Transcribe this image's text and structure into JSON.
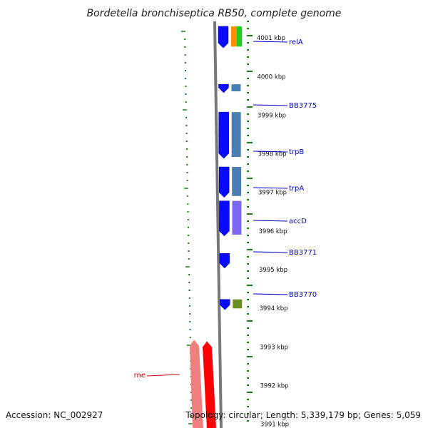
{
  "title": "Bordetella bronchiseptica RB50, complete genome",
  "footer": {
    "accession": "Accession: NC_002927",
    "info": "Topology: circular; Length: 5,339,179 bp; Genes: 5,059"
  },
  "colors": {
    "forward_gene": "#0a0aff",
    "rne": "#ff0000",
    "rne_light": "#f08080",
    "tick": "#1a7a1a",
    "backbone": "#777777",
    "label_line": "#0000cc",
    "rne_label": "#cc0000"
  },
  "scale": [
    {
      "label": "4001 kbp",
      "kbp": 4001
    },
    {
      "label": "4000 kbp",
      "kbp": 4000
    },
    {
      "label": "3999 kbp",
      "kbp": 3999
    },
    {
      "label": "3998 kbp",
      "kbp": 3998
    },
    {
      "label": "3997 kbp",
      "kbp": 3997
    },
    {
      "label": "3996 kbp",
      "kbp": 3996
    },
    {
      "label": "3995 kbp",
      "kbp": 3995
    },
    {
      "label": "3994 kbp",
      "kbp": 3994
    },
    {
      "label": "3993 kbp",
      "kbp": 3993
    },
    {
      "label": "3992 kbp",
      "kbp": 3992
    },
    {
      "label": "3991 kbp",
      "kbp": 3991
    }
  ],
  "view": {
    "top_kbp": 4001.28,
    "bottom_kbp": 3990.9
  },
  "genes": [
    {
      "name": "relA",
      "start": 4000.74,
      "end": 4001.3,
      "cog_color": "#ff8c00",
      "cog_color2": "#22cc22",
      "labeled": true
    },
    {
      "name": "BB3775",
      "start": 3999.58,
      "end": 3999.8,
      "cog_color": "#4a7fb5",
      "labeled": true
    },
    {
      "name": "trpB",
      "start": 3997.88,
      "end": 3999.08,
      "cog_color": "#4a7fb5",
      "labeled": true
    },
    {
      "name": "trpA",
      "start": 3997.66,
      "end": 3996.87,
      "cog_color": "#4a7fb5",
      "labeled": true
    },
    {
      "name": "accD",
      "start": 3995.87,
      "end": 3996.78,
      "cog_color": "#7b68ee",
      "labeled": true
    },
    {
      "name": "BB3771",
      "start": 3995.04,
      "end": 3995.42,
      "cog_color": null,
      "labeled": true
    },
    {
      "name": "BB3770",
      "start": 3993.96,
      "end": 3994.23,
      "cog_color": "#6b8e23",
      "labeled": true
    }
  ],
  "reverse_genes": [
    {
      "name": "rne",
      "start": 3990.9,
      "end": 3993.18,
      "labeled": true
    }
  ]
}
